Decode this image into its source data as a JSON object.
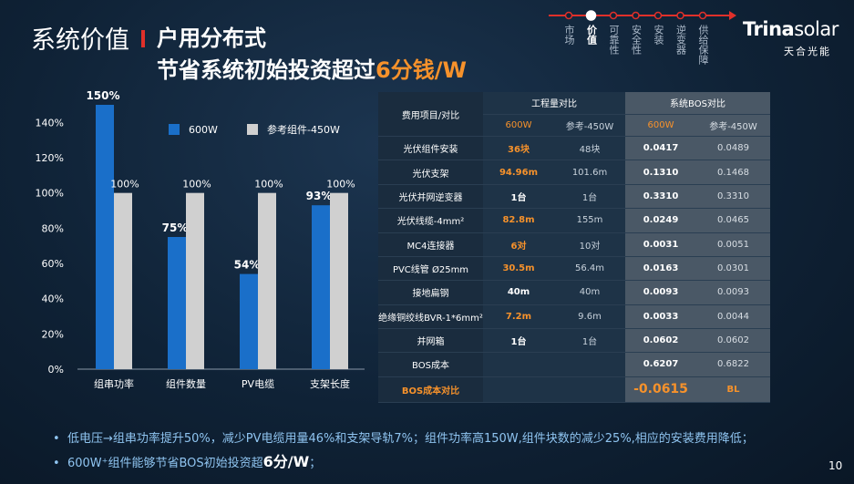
{
  "header": {
    "section": "系统价值",
    "title_line1": "户用分布式",
    "title_line2_prefix": "节省系统初始投资超过",
    "title_line2_highlight": "6分钱/W"
  },
  "nav": {
    "items": [
      "市场",
      "价值",
      "可靠性",
      "安全性",
      "安装",
      "逆变器",
      "供给保障"
    ],
    "active_index": 1
  },
  "logo": {
    "brand_bold": "Trina",
    "brand_light": "solar",
    "sub": "天合光能"
  },
  "colors": {
    "accent_orange": "#f7922b",
    "bar_600w": "#1a6fc9",
    "bar_ref": "#d0d0d0",
    "nav_red": "#e0302a"
  },
  "chart_data": {
    "type": "bar",
    "categories": [
      "组串功率",
      "组件数量",
      "PV电缆",
      "支架长度"
    ],
    "series": [
      {
        "name": "600W",
        "values": [
          150,
          75,
          54,
          93
        ],
        "labels": [
          "150%",
          "75%",
          "54%",
          "93%"
        ]
      },
      {
        "name": "参考组件-450W",
        "values": [
          100,
          100,
          100,
          100
        ],
        "labels": [
          "100%",
          "100%",
          "100%",
          "100%"
        ]
      }
    ],
    "yticks": [
      "0%",
      "20%",
      "40%",
      "60%",
      "80%",
      "100%",
      "120%",
      "140%"
    ],
    "ylim": [
      0,
      150
    ],
    "legend_placement": "top"
  },
  "table": {
    "header_item": "费用项目/对比",
    "group1": "工程量对比",
    "group2": "系统BOS对比",
    "sub": [
      "600W",
      "参考-450W",
      "600W",
      "参考-450W"
    ],
    "rows": [
      [
        "光伏组件安装",
        "36块",
        "48块",
        "0.0417",
        "0.0489"
      ],
      [
        "光伏支架",
        "94.96m",
        "101.6m",
        "0.1310",
        "0.1468"
      ],
      [
        "光伏并网逆变器",
        "1台",
        "1台",
        "0.3310",
        "0.3310"
      ],
      [
        "光伏线缆-4mm²",
        "82.8m",
        "155m",
        "0.0249",
        "0.0465"
      ],
      [
        "MC4连接器",
        "6对",
        "10对",
        "0.0031",
        "0.0051"
      ],
      [
        "PVC线管 Ø25mm",
        "30.5m",
        "56.4m",
        "0.0163",
        "0.0301"
      ],
      [
        "接地扁钢",
        "40m",
        "40m",
        "0.0093",
        "0.0093"
      ],
      [
        "绝缘铜绞线BVR-1*6mm²",
        "7.2m",
        "9.6m",
        "0.0033",
        "0.0044"
      ],
      [
        "并网箱",
        "1台",
        "1台",
        "0.0602",
        "0.0602"
      ],
      [
        "BOS成本",
        "",
        "",
        "0.6207",
        "0.6822"
      ]
    ],
    "last_row": {
      "label": "BOS成本对比",
      "value": "-0.0615",
      "ref": "BL"
    }
  },
  "footer": {
    "line1": "低电压→组串功率提升50%，减少PV电缆用量46%和支架导轨7%；组件功率高150W,组件块数的减少25%,相应的安装费用降低；",
    "line2_prefix": "600W⁺组件能够节省BOS初始投资超",
    "line2_highlight": "6分/W",
    "line2_suffix": "；"
  },
  "page_number": "10"
}
